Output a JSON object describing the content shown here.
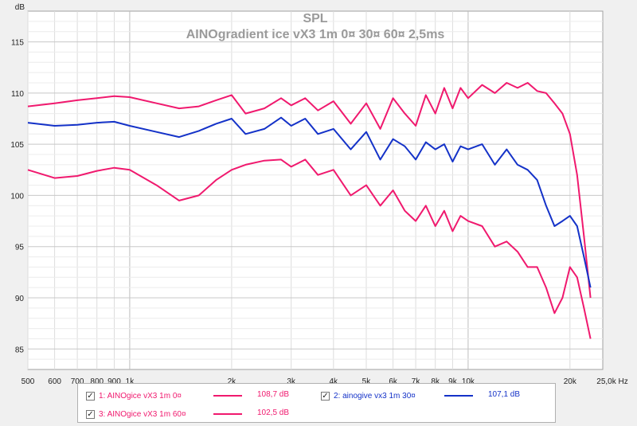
{
  "chart_data": {
    "type": "line",
    "title": "SPL",
    "subtitle": "AINOgradient ice vX3 1m 0¤ 30¤ 60¤ 2,5ms",
    "ylabel": "dB",
    "xlabel": "Hz",
    "x_scale": "log",
    "xlim": [
      500,
      25000
    ],
    "ylim": [
      83,
      118
    ],
    "x_ticks": [
      500,
      600,
      700,
      800,
      900,
      1000,
      2000,
      3000,
      4000,
      5000,
      6000,
      7000,
      8000,
      9000,
      10000,
      20000,
      25000
    ],
    "x_tick_labels": [
      "500",
      "600",
      "700",
      "800",
      "900",
      "1k",
      "2k",
      "3k",
      "4k",
      "5k",
      "6k",
      "7k",
      "8k",
      "9k",
      "10k",
      "20k",
      "25,0k Hz"
    ],
    "y_ticks": [
      85,
      90,
      95,
      100,
      105,
      110,
      115
    ],
    "y_tick_labels": [
      "85",
      "90",
      "95",
      "100",
      "105",
      "110",
      "115"
    ],
    "grid": true,
    "x": [
      500,
      600,
      700,
      800,
      900,
      1000,
      1200,
      1400,
      1600,
      1800,
      2000,
      2200,
      2500,
      2800,
      3000,
      3300,
      3600,
      4000,
      4500,
      5000,
      5500,
      6000,
      6500,
      7000,
      7500,
      8000,
      8500,
      9000,
      9500,
      10000,
      11000,
      12000,
      13000,
      14000,
      15000,
      16000,
      17000,
      18000,
      19000,
      20000,
      21000,
      22000,
      23000
    ],
    "series": [
      {
        "name": "1: AINOgice vX3 1m 0¤",
        "color": "#f0196e",
        "values": [
          108.7,
          109.0,
          109.3,
          109.5,
          109.7,
          109.6,
          109.0,
          108.5,
          108.7,
          109.3,
          109.8,
          108.0,
          108.5,
          109.5,
          108.8,
          109.5,
          108.3,
          109.2,
          107.0,
          109.0,
          106.5,
          109.5,
          108.0,
          106.8,
          109.8,
          108.0,
          110.5,
          108.5,
          110.5,
          109.5,
          110.8,
          110.0,
          111.0,
          110.5,
          111.0,
          110.2,
          110.0,
          109.0,
          108.0,
          106.0,
          102.0,
          96.0,
          90.0
        ]
      },
      {
        "name": "2: ainogive vx3 1m 30¤",
        "color": "#1432c8",
        "values": [
          107.1,
          106.8,
          106.9,
          107.1,
          107.2,
          106.8,
          106.2,
          105.7,
          106.3,
          107.0,
          107.5,
          106.0,
          106.5,
          107.6,
          106.8,
          107.5,
          106.0,
          106.5,
          104.5,
          106.2,
          103.5,
          105.5,
          104.8,
          103.5,
          105.2,
          104.5,
          105.0,
          103.3,
          104.8,
          104.5,
          105.0,
          103.0,
          104.5,
          103.0,
          102.5,
          101.5,
          99.0,
          97.0,
          97.5,
          98.0,
          97.0,
          94.0,
          91.0
        ]
      },
      {
        "name": "3: AINOgice vX3 1m 60¤",
        "color": "#f0196e",
        "values": [
          102.5,
          101.7,
          101.9,
          102.4,
          102.7,
          102.5,
          101.0,
          99.5,
          100.0,
          101.5,
          102.5,
          103.0,
          103.4,
          103.5,
          102.8,
          103.5,
          102.0,
          102.5,
          100.0,
          101.0,
          99.0,
          100.5,
          98.5,
          97.5,
          99.0,
          97.0,
          98.5,
          96.5,
          98.0,
          97.5,
          97.0,
          95.0,
          95.5,
          94.5,
          93.0,
          93.0,
          91.0,
          88.5,
          90.0,
          93.0,
          92.0,
          89.0,
          86.0
        ]
      }
    ]
  },
  "legend": {
    "entries": [
      {
        "label": "1: AINOgice vX3 1m 0¤",
        "value": "108,7 dB",
        "color": "#f0196e",
        "checked": "✓"
      },
      {
        "label": "2: ainogive vx3 1m 30¤",
        "value": "107,1 dB",
        "color": "#1432c8",
        "checked": "✓"
      },
      {
        "label": "3: AINOgice vX3 1m 60¤",
        "value": "102,5 dB",
        "color": "#f0196e",
        "checked": "✓"
      }
    ]
  },
  "colors": {
    "plot_bg": "#ffffff",
    "grid": "#d8d8d8",
    "title": "#9a9a9a",
    "axis_text": "#222222"
  }
}
